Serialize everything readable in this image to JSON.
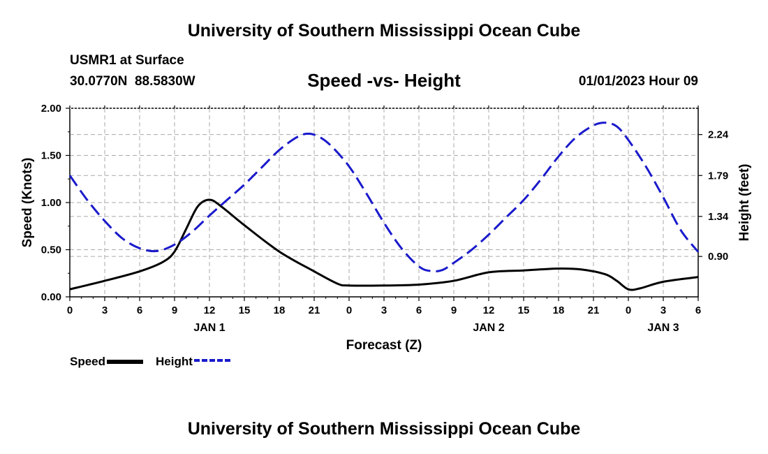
{
  "header": {
    "title": "University of Southern Mississippi Ocean Cube",
    "station": "USMR1 at Surface",
    "coords": "30.0770N  88.5830W",
    "chart_title": "Speed -vs- Height",
    "datetime": "01/01/2023 Hour 09"
  },
  "footer": {
    "title": "University of Southern Mississippi Ocean Cube"
  },
  "colors": {
    "speed": "#000000",
    "height": "#1a1acc",
    "grid": "#aaaaaa"
  },
  "chart_data": {
    "type": "line",
    "title": "Speed -vs- Height",
    "xlabel": "Forecast (Z)",
    "ylabel": "Speed (Knots)",
    "y2label": "Height (feet)",
    "xlim": [
      0,
      54
    ],
    "ylim": [
      0,
      2.0
    ],
    "y2lim": [
      0.456,
      2.529
    ],
    "x_ticks": [
      0,
      3,
      6,
      9,
      12,
      15,
      18,
      21,
      24,
      27,
      30,
      33,
      36,
      39,
      42,
      45,
      48,
      51,
      54
    ],
    "x_tick_labels": [
      "0",
      "3",
      "6",
      "9",
      "12",
      "15",
      "18",
      "21",
      "0",
      "3",
      "6",
      "9",
      "12",
      "15",
      "18",
      "21",
      "0",
      "3",
      "6"
    ],
    "y_ticks": [
      0,
      0.5,
      1.0,
      1.5,
      2.0
    ],
    "y_tick_labels": [
      "0.00",
      "0.50",
      "1.00",
      "1.50",
      "2.00"
    ],
    "y2_ticks": [
      0.9,
      1.34,
      1.79,
      2.24
    ],
    "y2_tick_labels": [
      "0.90",
      "1.34",
      "1.79",
      "2.24"
    ],
    "date_labels": [
      {
        "x": 12,
        "label": "JAN 1"
      },
      {
        "x": 36,
        "label": "JAN 2"
      },
      {
        "x": 51,
        "label": "JAN 3"
      }
    ],
    "grid": true,
    "legend_position": "bottom-left",
    "series": [
      {
        "name": "Speed",
        "axis": "left",
        "style": "solid",
        "x": [
          0,
          3,
          6,
          8,
          9,
          10,
          11,
          12,
          13,
          15,
          18,
          21,
          23,
          24,
          27,
          30,
          33,
          36,
          39,
          42,
          44,
          46,
          47,
          48,
          49,
          51,
          54
        ],
        "values": [
          0.08,
          0.17,
          0.27,
          0.37,
          0.48,
          0.72,
          0.96,
          1.03,
          0.96,
          0.76,
          0.48,
          0.27,
          0.14,
          0.12,
          0.12,
          0.13,
          0.17,
          0.26,
          0.28,
          0.3,
          0.29,
          0.24,
          0.17,
          0.08,
          0.09,
          0.16,
          0.21
        ]
      },
      {
        "name": "Height",
        "axis": "right",
        "style": "dashed",
        "x": [
          0,
          1.5,
          3,
          4.5,
          6,
          7.5,
          9,
          10.5,
          12,
          13.5,
          15,
          16.5,
          18,
          19.5,
          20.5,
          21.5,
          22.5,
          24,
          25.5,
          27,
          28.5,
          30,
          31,
          32,
          33,
          34.5,
          36,
          37.5,
          39,
          40.5,
          42,
          43.5,
          45,
          46,
          47,
          48,
          49.5,
          51,
          52.5,
          54
        ],
        "values": [
          1.79,
          1.52,
          1.29,
          1.1,
          0.99,
          0.96,
          1.03,
          1.17,
          1.35,
          1.52,
          1.69,
          1.88,
          2.07,
          2.21,
          2.25,
          2.21,
          2.11,
          1.89,
          1.59,
          1.27,
          0.99,
          0.79,
          0.74,
          0.75,
          0.83,
          0.97,
          1.14,
          1.33,
          1.52,
          1.75,
          2.0,
          2.21,
          2.34,
          2.37,
          2.33,
          2.18,
          1.89,
          1.55,
          1.19,
          0.95
        ]
      }
    ]
  },
  "legend": {
    "speed_label": "Speed",
    "height_label": "Height"
  }
}
